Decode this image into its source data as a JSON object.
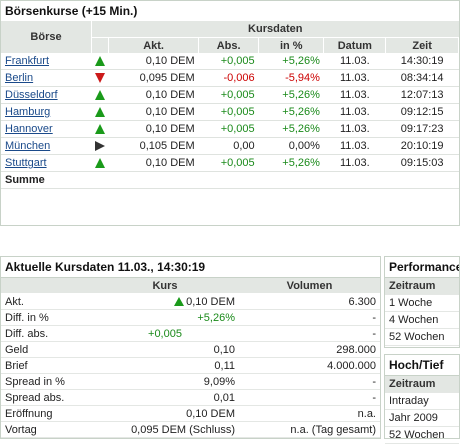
{
  "top": {
    "title": "Börsenkurse (+15 Min.)",
    "headers": {
      "boerse": "Börse",
      "group": "Kursdaten",
      "akt": "Akt.",
      "abs": "Abs.",
      "pct": "in %",
      "datum": "Datum",
      "zeit": "Zeit"
    },
    "rows": [
      {
        "name": "Frankfurt",
        "trend": "up",
        "akt": "0,10 DEM",
        "abs": "+0,005",
        "pct": "+5,26%",
        "datum": "11.03.",
        "zeit": "14:30:19",
        "sign": "pos"
      },
      {
        "name": "Berlin",
        "trend": "down",
        "akt": "0,095 DEM",
        "abs": "-0,006",
        "pct": "-5,94%",
        "datum": "11.03.",
        "zeit": "08:34:14",
        "sign": "neg"
      },
      {
        "name": "Düsseldorf",
        "trend": "up",
        "akt": "0,10 DEM",
        "abs": "+0,005",
        "pct": "+5,26%",
        "datum": "11.03.",
        "zeit": "12:07:13",
        "sign": "pos"
      },
      {
        "name": "Hamburg",
        "trend": "up",
        "akt": "0,10 DEM",
        "abs": "+0,005",
        "pct": "+5,26%",
        "datum": "11.03.",
        "zeit": "09:12:15",
        "sign": "pos"
      },
      {
        "name": "Hannover",
        "trend": "up",
        "akt": "0,10 DEM",
        "abs": "+0,005",
        "pct": "+5,26%",
        "datum": "11.03.",
        "zeit": "09:17:23",
        "sign": "pos"
      },
      {
        "name": "München",
        "trend": "right",
        "akt": "0,105 DEM",
        "abs": "0,00",
        "pct": "0,00%",
        "datum": "11.03.",
        "zeit": "20:10:19",
        "sign": "neutral"
      },
      {
        "name": "Stuttgart",
        "trend": "up",
        "akt": "0,10 DEM",
        "abs": "+0,005",
        "pct": "+5,26%",
        "datum": "11.03.",
        "zeit": "09:15:03",
        "sign": "pos"
      }
    ],
    "sum_label": "Summe"
  },
  "current": {
    "title": "Aktuelle Kursdaten 11.03., 14:30:19",
    "headers": {
      "kurs": "Kurs",
      "volumen": "Volumen"
    },
    "rows": [
      {
        "label": "Akt.",
        "kurs": "0,10 DEM",
        "vol": "6.300",
        "arrow": true,
        "cls": ""
      },
      {
        "label": "Diff. in %",
        "kurs": "+5,26%",
        "vol": "-",
        "cls": "pos"
      },
      {
        "label": "Diff. abs.",
        "kurs": "+0,005",
        "vol": "-",
        "cls": "pos",
        "center": true
      },
      {
        "label": "Geld",
        "kurs": "0,10",
        "vol": "298.000",
        "cls": ""
      },
      {
        "label": "Brief",
        "kurs": "0,11",
        "vol": "4.000.000",
        "cls": ""
      },
      {
        "label": "Spread in %",
        "kurs": "9,09%",
        "vol": "-",
        "cls": ""
      },
      {
        "label": "Spread abs.",
        "kurs": "0,01",
        "vol": "-",
        "cls": ""
      },
      {
        "label": "Eröffnung",
        "kurs": "0,10 DEM",
        "vol": "n.a.",
        "cls": ""
      },
      {
        "label": "Vortag",
        "kurs": "0,095 DEM (Schluss)",
        "vol": "n.a. (Tag gesamt)",
        "cls": ""
      }
    ]
  },
  "performance": {
    "title": "Performance",
    "header": "Zeitraum",
    "rows": [
      "1 Woche",
      "4 Wochen",
      "52 Wochen"
    ]
  },
  "hochtief": {
    "title": "Hoch/Tief",
    "header": "Zeitraum",
    "rows": [
      "Intraday",
      "Jahr 2009",
      "52 Wochen"
    ]
  },
  "colors": {
    "positive": "#1a8a1a",
    "negative": "#cc0000",
    "header_bg": "#e3e7e3",
    "link": "#1a4a8a"
  }
}
